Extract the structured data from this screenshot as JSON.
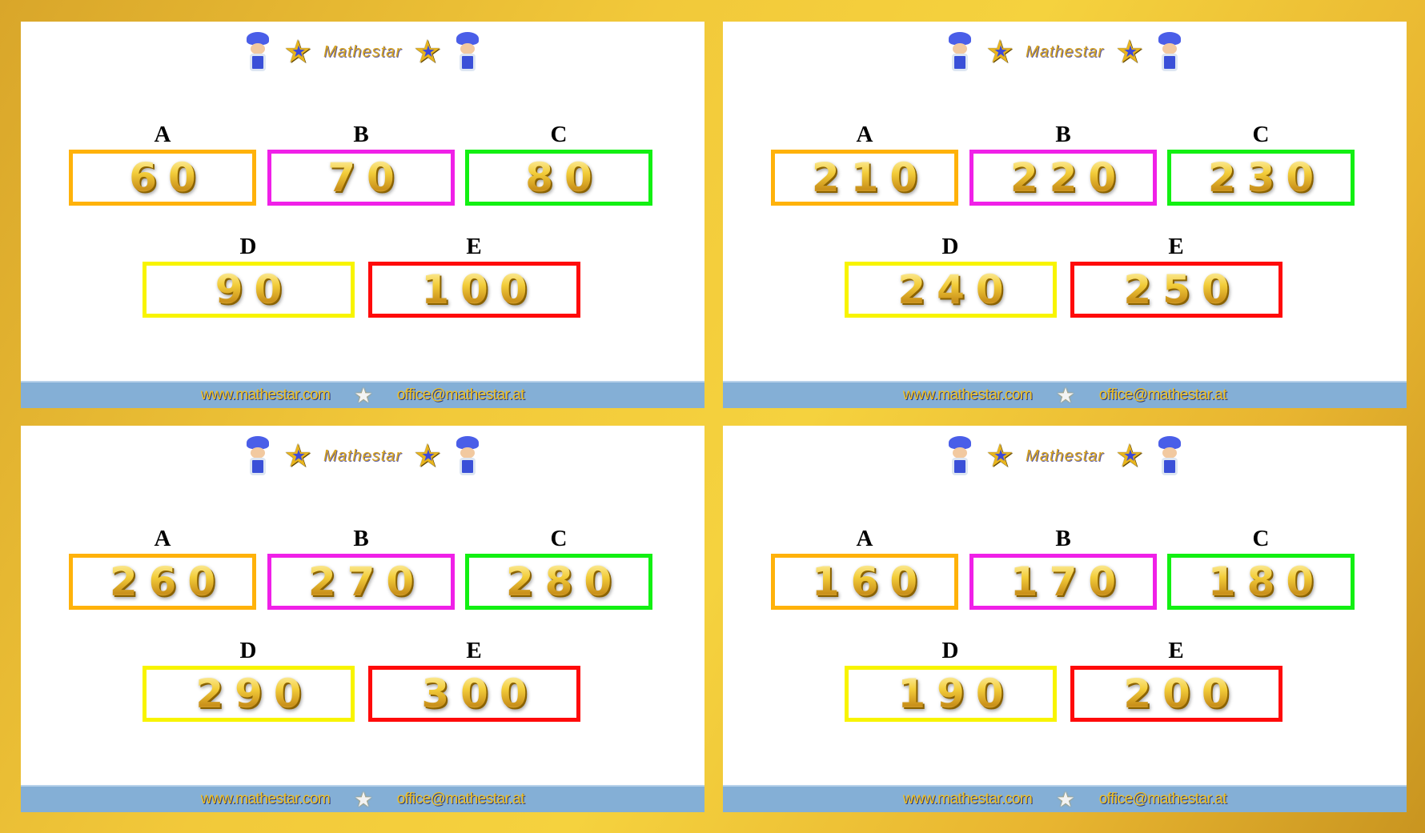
{
  "brand": "Mathestar",
  "footer": {
    "website": "www.mathestar.com",
    "email": "office@mathestar.at"
  },
  "labels": [
    "A",
    "B",
    "C",
    "D",
    "E"
  ],
  "panels": [
    {
      "values": [
        "60",
        "70",
        "80",
        "90",
        "100"
      ]
    },
    {
      "values": [
        "210",
        "220",
        "230",
        "240",
        "250"
      ]
    },
    {
      "values": [
        "260",
        "270",
        "280",
        "290",
        "300"
      ]
    },
    {
      "values": [
        "160",
        "170",
        "180",
        "190",
        "200"
      ]
    }
  ],
  "colors": {
    "A": "#ffb20a",
    "B": "#f020e8",
    "C": "#12f012",
    "D": "#f8f400",
    "E": "#ff0a0a",
    "footer": "#84afd6",
    "frame": "#f2c93a"
  }
}
